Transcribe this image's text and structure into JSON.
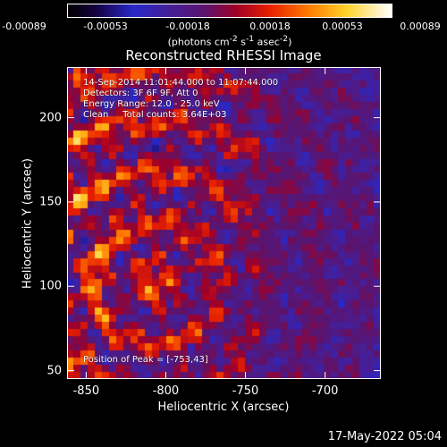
{
  "colorbar": {
    "tick_labels": [
      "-0.00089",
      "-0.00053",
      "-0.00018",
      "0.00018",
      "0.00053",
      "0.00089"
    ],
    "units_html": "(photons cm<sup>-2</sup> s<sup>-1</sup> asec<sup>-2</sup>)"
  },
  "chart_data": {
    "type": "heatmap",
    "title": "Reconstructed RHESSI Image",
    "xlabel": "Heliocentric X (arcsec)",
    "ylabel": "Heliocentric Y (arcsec)",
    "xlim": [
      -862,
      -665
    ],
    "ylim": [
      45,
      230
    ],
    "x_ticks": [
      -850,
      -800,
      -750,
      -700
    ],
    "y_ticks": [
      50,
      100,
      150,
      200
    ],
    "value_range": [
      -0.00089,
      0.00089
    ],
    "colormap": "rhessi-blue-red-white",
    "pixel_grid": [
      44,
      44
    ]
  },
  "annotations": {
    "time_range": "14-Sep-2014 11:01:44.000 to 11:07:44.000",
    "detectors": "Detectors: 3F 6F 9F, Att 0",
    "energy_range": "Energy Range: 12.0 - 25.0 keV",
    "clean_counts": "Clean     Total counts: 3.64E+03",
    "peak_position": "Position of Peak = [-753,43]"
  },
  "footer": {
    "date": "17-May-2022 05:04"
  }
}
